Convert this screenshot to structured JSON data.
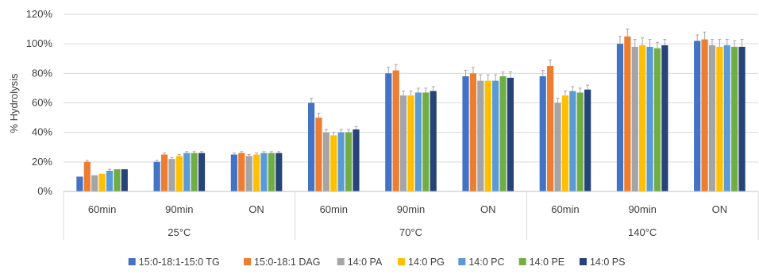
{
  "chart_data": {
    "type": "bar",
    "ylabel": "% Hydrolysis",
    "ylim": [
      0,
      120
    ],
    "y_ticks": [
      "0%",
      "20%",
      "40%",
      "60%",
      "80%",
      "100%",
      "120%"
    ],
    "grid": true,
    "legend_position": "bottom",
    "groups": [
      {
        "label": "25°C",
        "categories": [
          "60min",
          "90min",
          "ON"
        ]
      },
      {
        "label": "70°C",
        "categories": [
          "60min",
          "90min",
          "ON"
        ]
      },
      {
        "label": "140°C",
        "categories": [
          "60min",
          "90min",
          "ON"
        ]
      }
    ],
    "series": [
      {
        "name": "15:0-18:1-15:0 TG",
        "color": "#4472C4",
        "values": [
          10,
          20,
          25,
          60,
          80,
          78,
          78,
          100,
          102
        ],
        "errors": [
          0,
          1,
          1,
          3,
          4,
          4,
          4,
          5,
          4
        ]
      },
      {
        "name": "15:0-18:1 DAG",
        "color": "#ED7D31",
        "values": [
          20,
          25,
          26,
          50,
          82,
          80,
          85,
          105,
          103
        ],
        "errors": [
          1,
          1,
          1,
          3,
          4,
          4,
          4,
          5,
          5
        ]
      },
      {
        "name": "14:0 PA",
        "color": "#A5A5A5",
        "values": [
          11,
          22,
          24,
          40,
          65,
          75,
          60,
          98,
          99
        ],
        "errors": [
          0,
          1,
          1,
          2,
          3,
          4,
          3,
          5,
          4
        ]
      },
      {
        "name": "14:0 PG",
        "color": "#FFC000",
        "values": [
          12,
          24,
          25,
          38,
          65,
          75,
          65,
          99,
          98
        ],
        "errors": [
          0,
          1,
          1,
          2,
          3,
          4,
          3,
          5,
          5
        ]
      },
      {
        "name": "14:0 PC",
        "color": "#5B9BD5",
        "values": [
          14,
          26,
          26,
          40,
          67,
          75,
          68,
          98,
          99
        ],
        "errors": [
          1,
          1,
          1,
          2,
          3,
          4,
          3,
          5,
          4
        ]
      },
      {
        "name": "14:0 PE",
        "color": "#70AD47",
        "values": [
          15,
          26,
          26,
          40,
          67,
          78,
          67,
          97,
          98
        ],
        "errors": [
          0,
          1,
          1,
          2,
          3,
          3,
          3,
          4,
          4
        ]
      },
      {
        "name": "14:0 PS",
        "color": "#264478",
        "values": [
          15,
          26,
          26,
          42,
          68,
          77,
          69,
          99,
          98
        ],
        "errors": [
          0,
          1,
          1,
          2,
          3,
          4,
          3,
          4,
          5
        ]
      }
    ]
  }
}
